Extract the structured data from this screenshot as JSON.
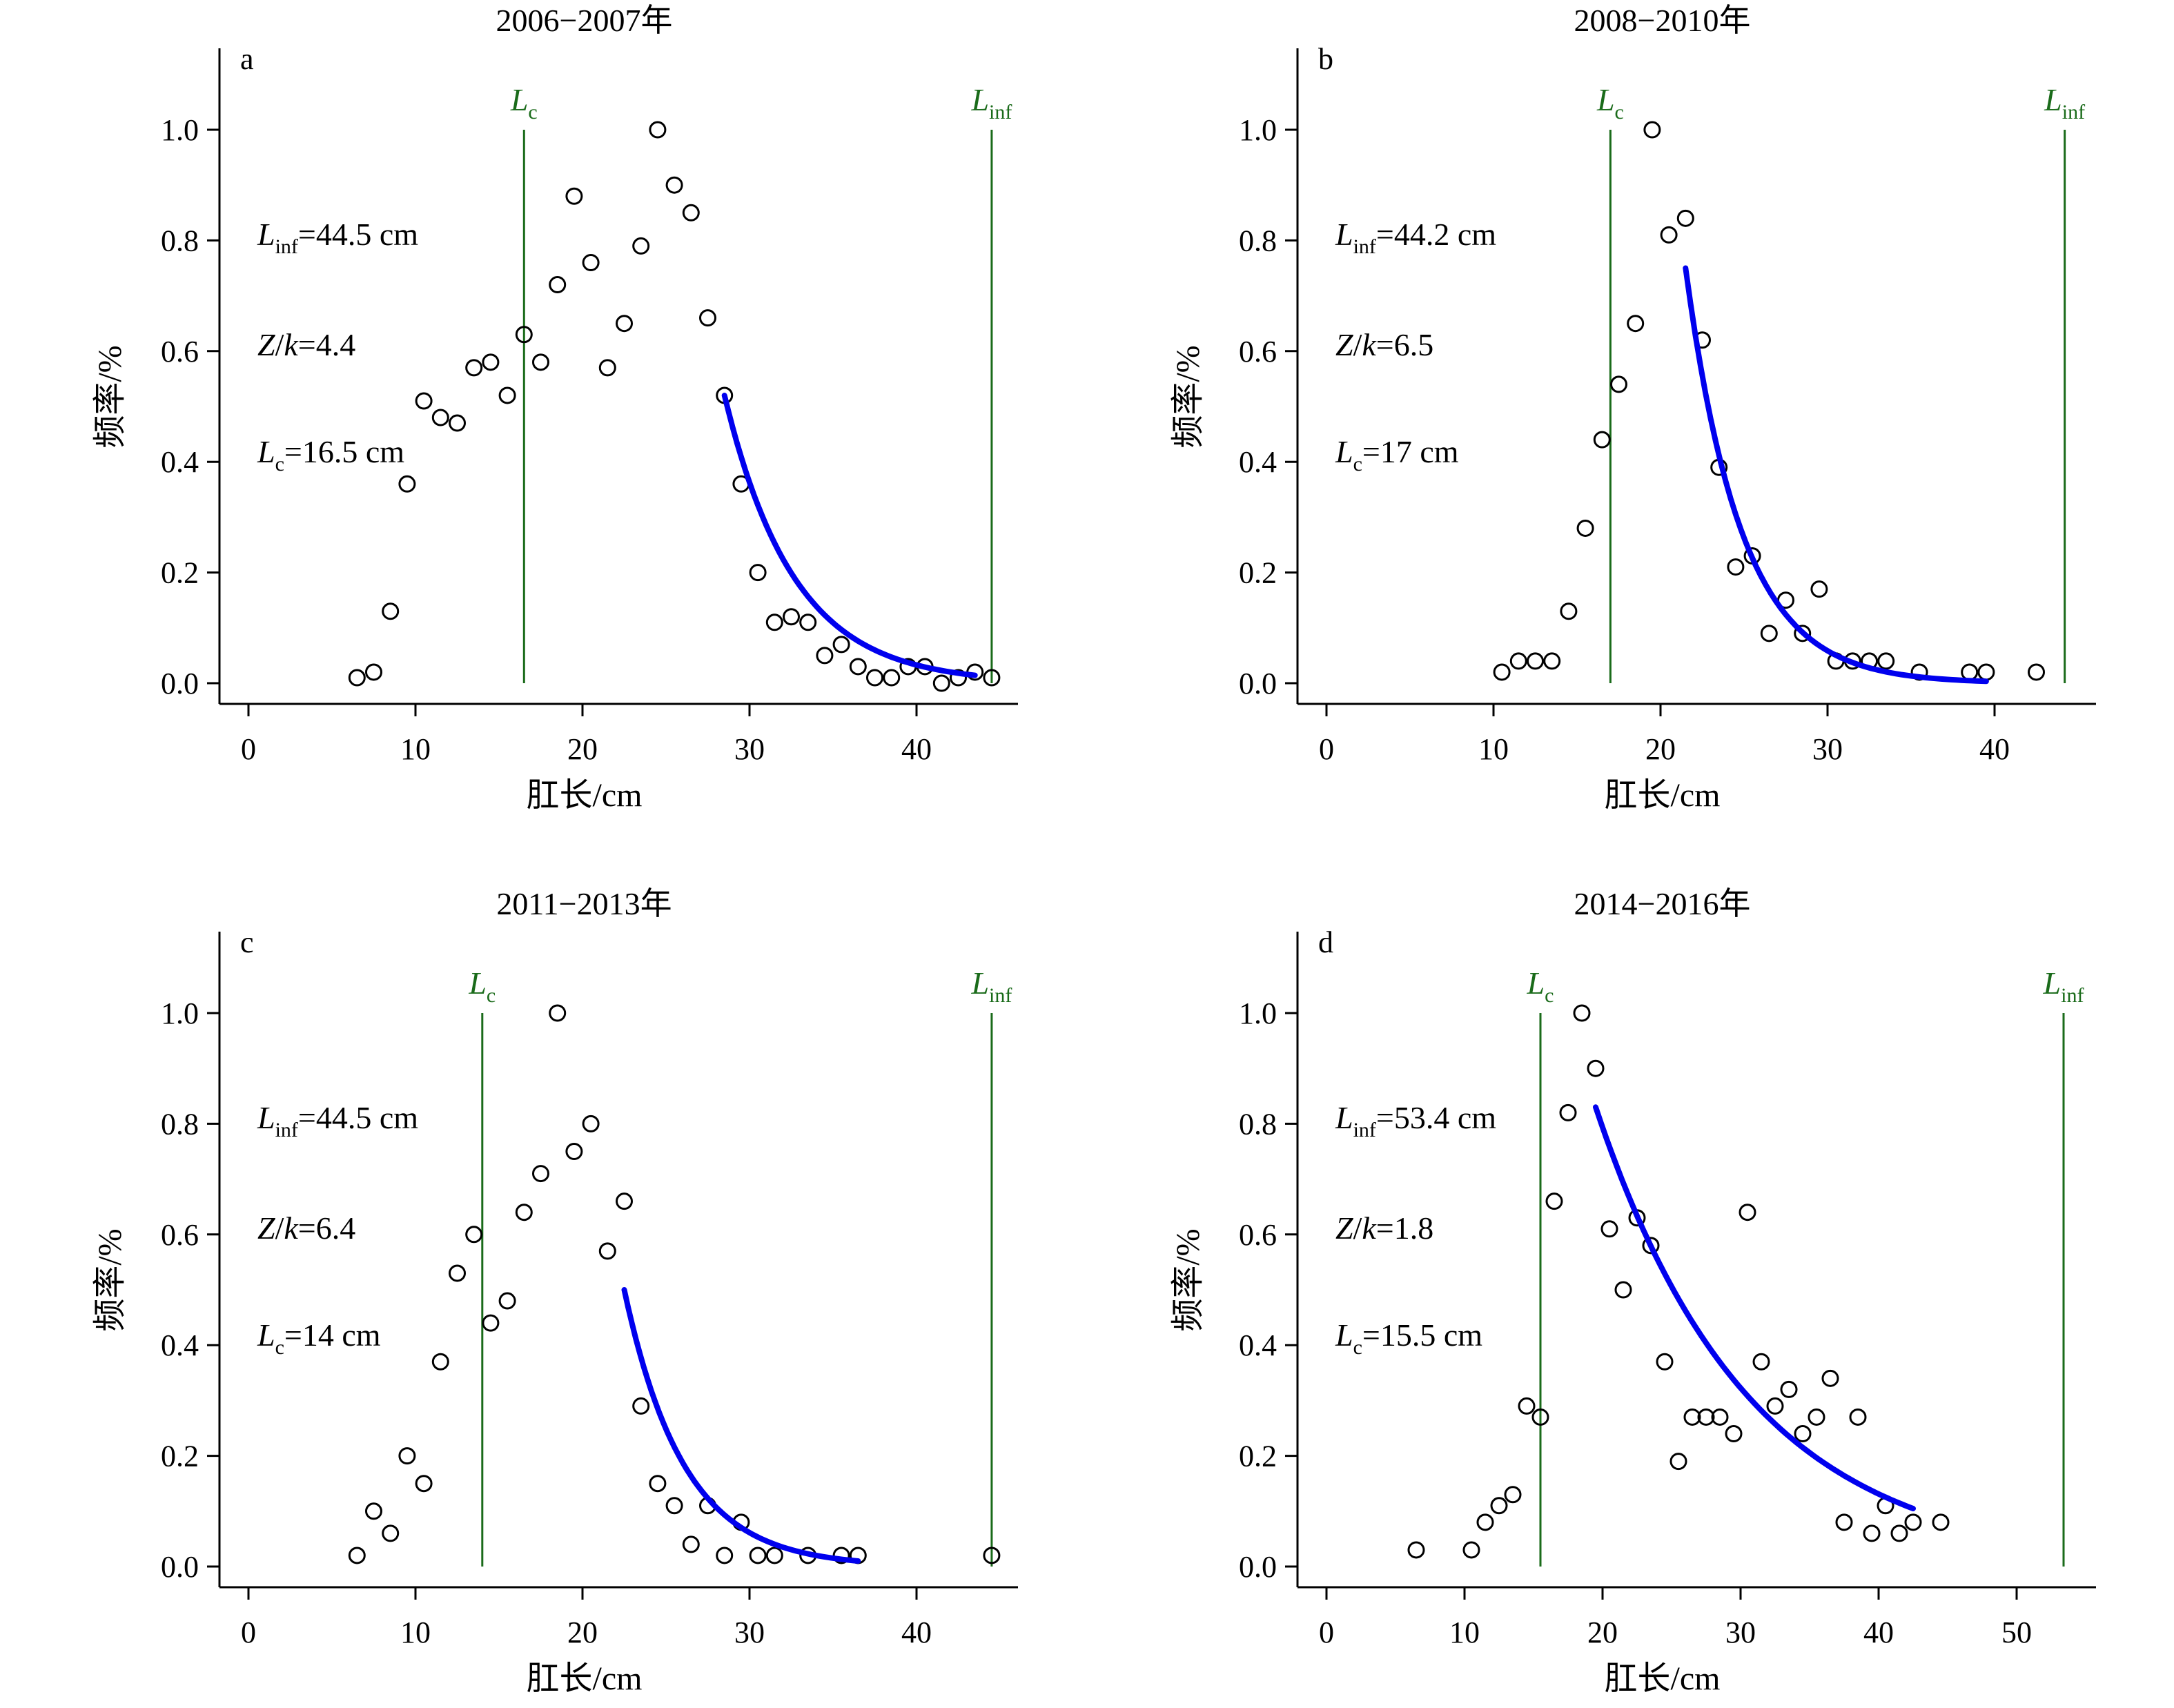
{
  "chart_data": [
    {
      "type": "scatter",
      "panel_letter": "a",
      "title": "2006−2007年",
      "xlabel": "肛长/cm",
      "ylabel": "频率/%",
      "xlim": [
        -2,
        46
      ],
      "ylim": [
        0,
        1.1
      ],
      "xticks": [
        "0",
        "10",
        "20",
        "30",
        "40"
      ],
      "yticks": [
        "0.0",
        "0.2",
        "0.4",
        "0.6",
        "0.8",
        "1.0"
      ],
      "vlines": [
        {
          "label_main": "L",
          "label_sub": "c",
          "x": 16.5,
          "color": "#1a6b1a"
        },
        {
          "label_main": "L",
          "label_sub": "inf",
          "x": 44.5,
          "color": "#1a6b1a"
        }
      ],
      "annotations": [
        {
          "main": "L",
          "sub": "inf",
          "rest": "=44.5 cm"
        },
        {
          "main": "Z",
          "sub": "",
          "rest": "/k=4.4"
        },
        {
          "main": "L",
          "sub": "c",
          "rest": "=16.5 cm"
        }
      ],
      "points": {
        "x": [
          6.5,
          7.5,
          8.5,
          9.5,
          10.5,
          11.5,
          12.5,
          13.5,
          14.5,
          15.5,
          16.5,
          17.5,
          18.5,
          19.5,
          20.5,
          21.5,
          22.5,
          23.5,
          24.5,
          25.5,
          26.5,
          27.5,
          28.5,
          29.5,
          30.5,
          31.5,
          32.5,
          33.5,
          34.5,
          35.5,
          36.5,
          37.5,
          38.5,
          39.5,
          40.5,
          41.5,
          42.5,
          43.5,
          44.5
        ],
        "y": [
          0.01,
          0.02,
          0.13,
          0.36,
          0.51,
          0.48,
          0.47,
          0.57,
          0.58,
          0.52,
          0.63,
          0.58,
          0.72,
          0.88,
          0.76,
          0.57,
          0.65,
          0.79,
          1.0,
          0.9,
          0.85,
          0.66,
          0.52,
          0.36,
          0.2,
          0.11,
          0.12,
          0.11,
          0.05,
          0.07,
          0.03,
          0.01,
          0.01,
          0.03,
          0.03,
          0.0,
          0.01,
          0.02,
          0.01
        ]
      },
      "fit": {
        "x0": 28.5,
        "y0": 0.52,
        "k": 0.24,
        "x_end": 43.5,
        "color": "#0000ee"
      }
    },
    {
      "type": "scatter",
      "panel_letter": "b",
      "title": "2008−2010年",
      "xlabel": "肛长/cm",
      "ylabel": "频率/%",
      "xlim": [
        -2,
        46
      ],
      "ylim": [
        0,
        1.1
      ],
      "xticks": [
        "0",
        "10",
        "20",
        "30",
        "40"
      ],
      "yticks": [
        "0.0",
        "0.2",
        "0.4",
        "0.6",
        "0.8",
        "1.0"
      ],
      "vlines": [
        {
          "label_main": "L",
          "label_sub": "c",
          "x": 17,
          "color": "#1a6b1a"
        },
        {
          "label_main": "L",
          "label_sub": "inf",
          "x": 44.2,
          "color": "#1a6b1a"
        }
      ],
      "annotations": [
        {
          "main": "L",
          "sub": "inf",
          "rest": "=44.2 cm"
        },
        {
          "main": "Z",
          "sub": "",
          "rest": "/k=6.5"
        },
        {
          "main": "L",
          "sub": "c",
          "rest": "=17 cm"
        }
      ],
      "points": {
        "x": [
          10.5,
          11.5,
          12.5,
          13.5,
          14.5,
          15.5,
          16.5,
          17.5,
          18.5,
          19.5,
          20.5,
          21.5,
          22.5,
          23.5,
          24.5,
          25.5,
          26.5,
          27.5,
          28.5,
          29.5,
          30.5,
          31.5,
          32.5,
          33.5,
          35.5,
          38.5,
          39.5,
          42.5
        ],
        "y": [
          0.02,
          0.04,
          0.04,
          0.04,
          0.13,
          0.28,
          0.44,
          0.54,
          0.65,
          1.0,
          0.81,
          0.84,
          0.62,
          0.39,
          0.21,
          0.23,
          0.09,
          0.15,
          0.09,
          0.17,
          0.04,
          0.04,
          0.04,
          0.04,
          0.02,
          0.02,
          0.02,
          0.02
        ]
      },
      "fit": {
        "x0": 21.5,
        "y0": 0.75,
        "k": 0.3,
        "x_end": 39.5,
        "color": "#0000ee"
      }
    },
    {
      "type": "scatter",
      "panel_letter": "c",
      "title": "2011−2013年",
      "xlabel": "肛长/cm",
      "ylabel": "频率/%",
      "xlim": [
        -2,
        46
      ],
      "ylim": [
        0,
        1.1
      ],
      "xticks": [
        "0",
        "10",
        "20",
        "30",
        "40"
      ],
      "yticks": [
        "0.0",
        "0.2",
        "0.4",
        "0.6",
        "0.8",
        "1.0"
      ],
      "vlines": [
        {
          "label_main": "L",
          "label_sub": "c",
          "x": 14,
          "color": "#1a6b1a"
        },
        {
          "label_main": "L",
          "label_sub": "inf",
          "x": 44.5,
          "color": "#1a6b1a"
        }
      ],
      "annotations": [
        {
          "main": "L",
          "sub": "inf",
          "rest": "=44.5 cm"
        },
        {
          "main": "Z",
          "sub": "",
          "rest": "/k=6.4"
        },
        {
          "main": "L",
          "sub": "c",
          "rest": "=14 cm"
        }
      ],
      "points": {
        "x": [
          6.5,
          7.5,
          8.5,
          9.5,
          10.5,
          11.5,
          12.5,
          13.5,
          14.5,
          15.5,
          16.5,
          17.5,
          18.5,
          19.5,
          20.5,
          21.5,
          22.5,
          23.5,
          24.5,
          25.5,
          26.5,
          27.5,
          28.5,
          29.5,
          30.5,
          31.5,
          33.5,
          35.5,
          36.5,
          44.5
        ],
        "y": [
          0.02,
          0.1,
          0.06,
          0.2,
          0.15,
          0.37,
          0.53,
          0.6,
          0.44,
          0.48,
          0.64,
          0.71,
          1.0,
          0.75,
          0.8,
          0.57,
          0.66,
          0.29,
          0.15,
          0.11,
          0.04,
          0.11,
          0.02,
          0.08,
          0.02,
          0.02,
          0.02,
          0.02,
          0.02,
          0.02
        ]
      },
      "fit": {
        "x0": 22.5,
        "y0": 0.5,
        "k": 0.28,
        "x_end": 36.5,
        "color": "#0000ee"
      }
    },
    {
      "type": "scatter",
      "panel_letter": "d",
      "title": "2014−2016年",
      "xlabel": "肛长/cm",
      "ylabel": "频率/%",
      "xlim": [
        -2,
        56
      ],
      "ylim": [
        0,
        1.1
      ],
      "xticks": [
        "0",
        "10",
        "20",
        "30",
        "40",
        "50"
      ],
      "yticks": [
        "0.0",
        "0.2",
        "0.4",
        "0.6",
        "0.8",
        "1.0"
      ],
      "vlines": [
        {
          "label_main": "L",
          "label_sub": "c",
          "x": 15.5,
          "color": "#1a6b1a"
        },
        {
          "label_main": "L",
          "label_sub": "inf",
          "x": 53.4,
          "color": "#1a6b1a"
        }
      ],
      "annotations": [
        {
          "main": "L",
          "sub": "inf",
          "rest": "=53.4 cm"
        },
        {
          "main": "Z",
          "sub": "",
          "rest": "/k=1.8"
        },
        {
          "main": "L",
          "sub": "c",
          "rest": "=15.5 cm"
        }
      ],
      "points": {
        "x": [
          6.5,
          10.5,
          11.5,
          12.5,
          13.5,
          14.5,
          15.5,
          16.5,
          17.5,
          18.5,
          19.5,
          20.5,
          21.5,
          22.5,
          23.5,
          24.5,
          25.5,
          26.5,
          27.5,
          28.5,
          29.5,
          30.5,
          31.5,
          32.5,
          33.5,
          34.5,
          35.5,
          36.5,
          37.5,
          38.5,
          39.5,
          40.5,
          41.5,
          42.5,
          44.5
        ],
        "y": [
          0.03,
          0.03,
          0.08,
          0.11,
          0.13,
          0.29,
          0.27,
          0.66,
          0.82,
          1.0,
          0.9,
          0.61,
          0.5,
          0.63,
          0.58,
          0.37,
          0.19,
          0.27,
          0.27,
          0.27,
          0.24,
          0.64,
          0.37,
          0.29,
          0.32,
          0.24,
          0.27,
          0.34,
          0.08,
          0.27,
          0.06,
          0.11,
          0.06,
          0.08,
          0.08
        ]
      },
      "fit": {
        "x0": 19.5,
        "y0": 0.83,
        "k": 0.09,
        "x_end": 42.5,
        "color": "#0000ee"
      }
    }
  ]
}
